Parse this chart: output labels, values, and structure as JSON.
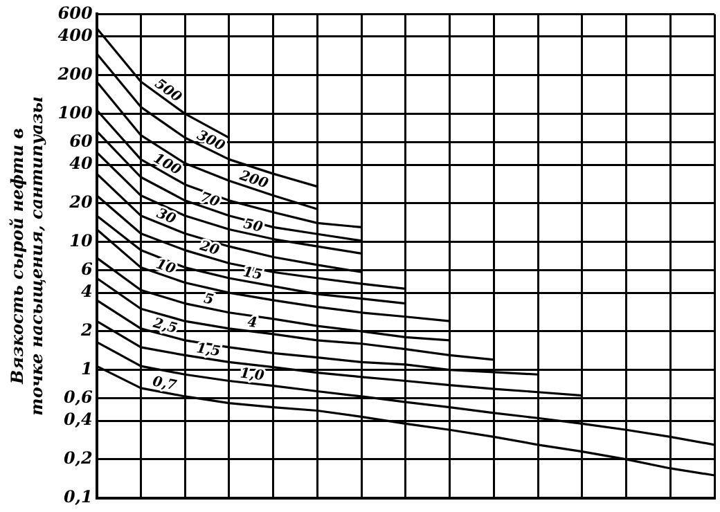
{
  "chart_data": {
    "type": "line",
    "ylabel": "Вязкость сырой нефти в точке насыщения, сантипуазы",
    "log": true,
    "grid": true,
    "tick_labels": "y",
    "categories": [
      null,
      null,
      null,
      null,
      null,
      null,
      null,
      null,
      null,
      null,
      null,
      null,
      null,
      null,
      null
    ],
    "ylim": [
      0.1,
      600
    ],
    "yticks": [
      {
        "value": 0.1,
        "label": "0,1"
      },
      {
        "value": 0.2,
        "label": "0,2"
      },
      {
        "value": 0.4,
        "label": "0,4"
      },
      {
        "value": 0.6,
        "label": "0,6"
      },
      1,
      2,
      4,
      6,
      10,
      20,
      40,
      60,
      100,
      200,
      400,
      600
    ],
    "series": [
      {
        "name": "500",
        "color": "#000000",
        "values": [
          466,
          178,
          100,
          65,
          null,
          null,
          null,
          null,
          null,
          null,
          null,
          null,
          null,
          null,
          null
        ]
      },
      {
        "name": "300",
        "color": "#000000",
        "values": [
          295,
          113,
          65,
          44,
          34,
          27,
          null,
          null,
          null,
          null,
          null,
          null,
          null,
          null,
          null
        ]
      },
      {
        "name": "200",
        "color": "#000000",
        "values": [
          178,
          68,
          41,
          30,
          23,
          18,
          null,
          null,
          null,
          null,
          null,
          null,
          null,
          null,
          null
        ]
      },
      {
        "name": "100",
        "color": "#000000",
        "values": [
          107,
          44,
          28,
          21,
          17,
          14,
          13,
          null,
          null,
          null,
          null,
          null,
          null,
          null,
          null
        ]
      },
      {
        "name": "70",
        "color": "#000000",
        "values": [
          73,
          32,
          21,
          16,
          13,
          11.5,
          10.2,
          null,
          null,
          null,
          null,
          null,
          null,
          null,
          null
        ]
      },
      {
        "name": "50",
        "color": "#000000",
        "values": [
          50,
          23,
          16,
          12.5,
          10.5,
          9.2,
          8.1,
          null,
          null,
          null,
          null,
          null,
          null,
          null,
          null
        ]
      },
      {
        "name": "30",
        "color": "#000000",
        "values": [
          34,
          16,
          11.6,
          9.2,
          7.6,
          6.6,
          5.8,
          null,
          null,
          null,
          null,
          null,
          null,
          null,
          null
        ]
      },
      {
        "name": "20",
        "color": "#000000",
        "values": [
          23,
          11.6,
          8.6,
          6.8,
          5.8,
          5.2,
          4.7,
          4.3,
          null,
          null,
          null,
          null,
          null,
          null,
          null
        ]
      },
      {
        "name": "15",
        "color": "#000000",
        "values": [
          16,
          8.6,
          6.3,
          5.2,
          4.5,
          3.9,
          3.6,
          3.3,
          null,
          null,
          null,
          null,
          null,
          null,
          null
        ]
      },
      {
        "name": "10",
        "color": "#000000",
        "values": [
          12.5,
          6.3,
          4.8,
          4.0,
          3.5,
          3.1,
          2.8,
          2.6,
          2.4,
          null,
          null,
          null,
          null,
          null,
          null
        ]
      },
      {
        "name": "5",
        "color": "#000000",
        "values": [
          7.5,
          4.2,
          3.3,
          2.8,
          2.5,
          2.2,
          2.0,
          1.8,
          1.7,
          null,
          null,
          null,
          null,
          null,
          null
        ]
      },
      {
        "name": "4",
        "color": "#000000",
        "values": [
          5.2,
          3.0,
          2.4,
          2.1,
          1.9,
          1.7,
          1.6,
          1.45,
          1.3,
          1.2,
          null,
          null,
          null,
          null,
          null
        ]
      },
      {
        "name": "2,5",
        "color": "#000000",
        "values": [
          3.5,
          2.1,
          1.7,
          1.5,
          1.35,
          1.25,
          1.15,
          1.1,
          1.0,
          0.96,
          0.92,
          null,
          null,
          null,
          null
        ]
      },
      {
        "name": "1,5",
        "color": "#000000",
        "values": [
          2.4,
          1.5,
          1.3,
          1.15,
          1.05,
          0.95,
          0.88,
          0.82,
          0.76,
          0.71,
          0.67,
          0.63,
          null,
          null,
          null
        ]
      },
      {
        "name": "1,0",
        "color": "#000000",
        "values": [
          1.65,
          1.07,
          0.92,
          0.82,
          0.75,
          0.68,
          0.62,
          0.56,
          0.51,
          0.46,
          0.42,
          0.38,
          0.34,
          0.3,
          0.26
        ]
      },
      {
        "name": "0,7",
        "color": "#000000",
        "values": [
          1.07,
          0.72,
          0.62,
          0.55,
          0.51,
          0.48,
          0.43,
          0.38,
          0.34,
          0.3,
          0.26,
          0.23,
          0.2,
          0.17,
          0.15
        ]
      }
    ]
  }
}
